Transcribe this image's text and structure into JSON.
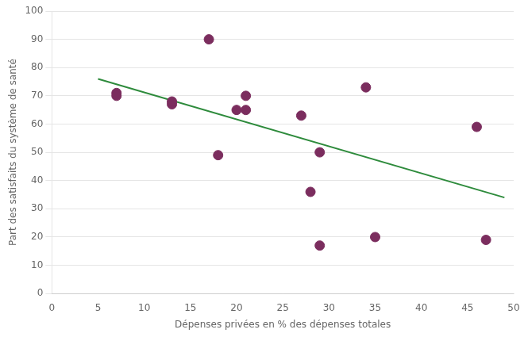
{
  "chart_data": {
    "type": "scatter",
    "xlabel": "Dépenses privées en % des dépenses totales",
    "ylabel": "Part des satisfaits du système de santé",
    "series": [
      {
        "type": "scatter",
        "color": "#7B2D5E",
        "x": [
          7,
          7,
          13,
          13,
          17,
          18,
          20,
          21,
          21,
          27,
          28,
          29,
          29,
          34,
          35,
          46,
          47
        ],
        "values": [
          71,
          70,
          67,
          68,
          90,
          49,
          65,
          70,
          65,
          63,
          36,
          50,
          17,
          73,
          20,
          59,
          19
        ]
      },
      {
        "type": "line",
        "color": "#2E8B3C",
        "x": [
          5,
          49
        ],
        "values": [
          76,
          34
        ]
      }
    ],
    "xlim": [
      0,
      50
    ],
    "ylim": [
      0,
      100
    ],
    "xticks": [
      0,
      5,
      10,
      15,
      20,
      25,
      30,
      35,
      40,
      45,
      50
    ],
    "yticks": [
      0,
      10,
      20,
      30,
      40,
      50,
      60,
      70,
      80,
      90,
      100
    ],
    "grid": "y"
  }
}
